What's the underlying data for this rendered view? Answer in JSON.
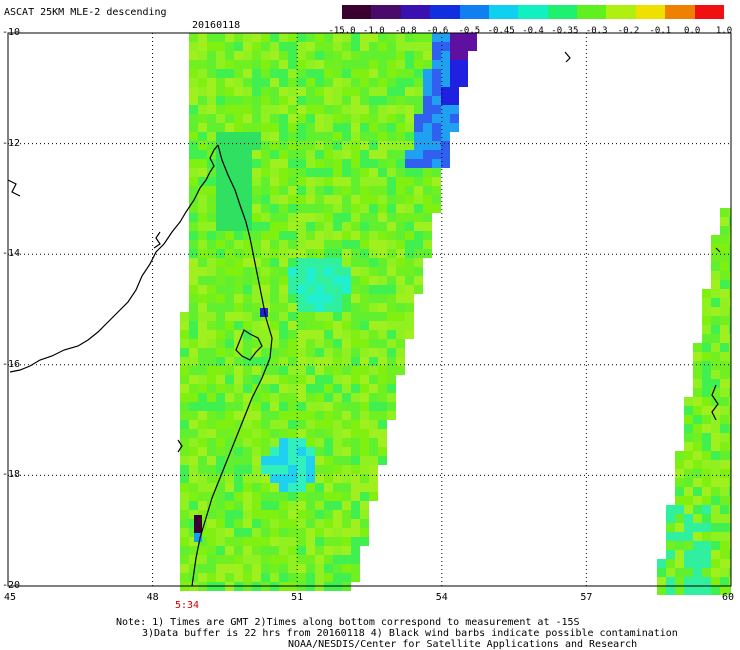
{
  "title": "ASCAT 25KM MLE-2 descending",
  "date": "20160118",
  "time_label": "5:34",
  "colorbar": {
    "labels": [
      "-15.0",
      "-1.0",
      "-0.8",
      "-0.6",
      "-0.5",
      "-0.45",
      "-0.4",
      "-0.35",
      "-0.3",
      "-0.2",
      "-0.1",
      "0.0",
      "1.0"
    ],
    "colors": [
      "#3a0030",
      "#4a0a6a",
      "#3a10b0",
      "#1030e0",
      "#1080f0",
      "#10d0f0",
      "#10f0c0",
      "#20f070",
      "#60f020",
      "#b0f010",
      "#f0e000",
      "#f08000",
      "#f01010"
    ]
  },
  "map": {
    "lat_labels": [
      "-10",
      "-12",
      "-14",
      "-16",
      "-18",
      "-20"
    ],
    "lon_labels": [
      "45",
      "48",
      "51",
      "54",
      "57",
      "60"
    ]
  },
  "notes": {
    "line1": "Note: 1) Times are GMT 2)Times along bottom correspond to measurement at -15S",
    "line2": "3)Data buffer is 22 hrs from 20160118 4) Black wind barbs indicate possible contamination",
    "line3": "NOAA/NESDIS/Center for Satellite Applications and Research"
  }
}
